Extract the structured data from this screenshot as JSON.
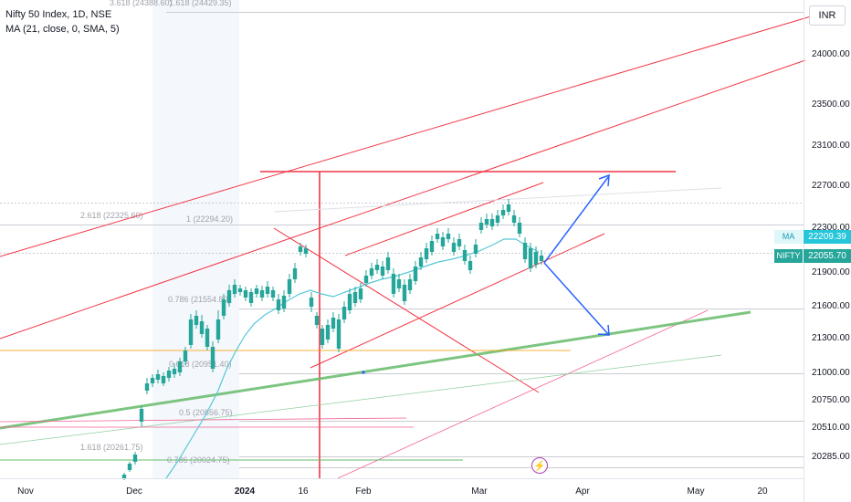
{
  "legend": {
    "title": "Nifty 50 Index, 1D, NSE",
    "indicator": "MA (21, close, 0, SMA, 5)"
  },
  "currency_button": "INR",
  "price_tags": {
    "ma": {
      "tag": "MA",
      "value": "22209.39",
      "color": "#26c6da"
    },
    "symbol": {
      "tag": "NIFTY",
      "value": "22055.70",
      "color": "#26a69a"
    }
  },
  "colors": {
    "bull": "#26a69a",
    "bear": "#e57373",
    "trend": "#f23645",
    "green_line": "#66bb6a",
    "arrow": "#2962ff",
    "ma_line": "#56c8d8",
    "fib_line": "#b2b5be",
    "orange_line": "#ff9800"
  },
  "chart_data": {
    "type": "candlestick",
    "y_ticks": [
      "24000.00",
      "23500.00",
      "23100.00",
      "22700.00",
      "22300.00",
      "21900.00",
      "21600.00",
      "21300.00",
      "21000.00",
      "20750.00",
      "20510.00",
      "20285.00"
    ],
    "x_ticks": [
      "Nov",
      "Dec",
      "2024",
      "16",
      "Feb",
      "Mar",
      "Apr",
      "May",
      "20"
    ],
    "fib_labels": [
      "3.618 (24388.60)",
      "1.618 (24429.35)",
      "2.618 (22325.60)",
      "1 (22294.20)",
      "0.786 (21554.80)",
      "0.618 (20951.40)",
      "0.5 (20856.75)",
      "1.618 (20261.75)",
      "0.786 (20024.75)"
    ],
    "ylim": [
      20100,
      24600
    ]
  }
}
